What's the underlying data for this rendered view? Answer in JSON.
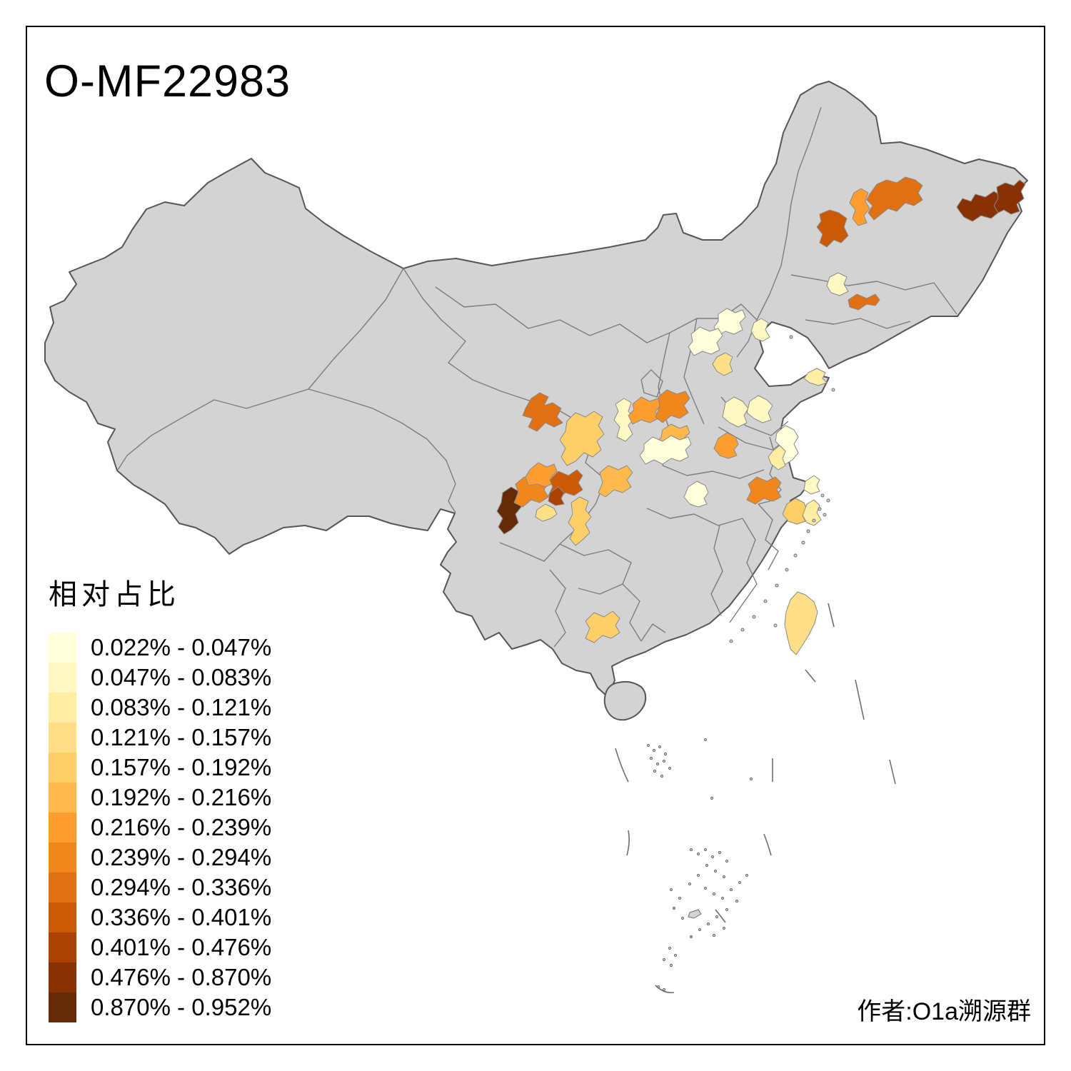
{
  "title": "O-MF22983",
  "attribution": "作者:O1a溯源群",
  "legend": {
    "title": "相对占比",
    "classes": [
      {
        "label": "0.022% - 0.047%",
        "color": "#FFFFDC"
      },
      {
        "label": "0.047% - 0.083%",
        "color": "#FFF8C2"
      },
      {
        "label": "0.083% - 0.121%",
        "color": "#FFEDA4"
      },
      {
        "label": "0.121% - 0.157%",
        "color": "#FEDF87"
      },
      {
        "label": "0.157% - 0.192%",
        "color": "#FECF66"
      },
      {
        "label": "0.192% - 0.216%",
        "color": "#FDB94B"
      },
      {
        "label": "0.216% - 0.239%",
        "color": "#FD9D30"
      },
      {
        "label": "0.239% - 0.294%",
        "color": "#F0861C"
      },
      {
        "label": "0.294% - 0.336%",
        "color": "#E07013"
      },
      {
        "label": "0.336% - 0.401%",
        "color": "#CC5906"
      },
      {
        "label": "0.401% - 0.476%",
        "color": "#AC4104"
      },
      {
        "label": "0.476% - 0.870%",
        "color": "#8A3104"
      },
      {
        "label": "0.870% - 0.952%",
        "color": "#652B06"
      }
    ]
  },
  "map": {
    "land_color": "#D3D3D3",
    "country_border_color": "#565656",
    "province_border_color": "#7D7D7D",
    "regions": [
      {
        "id": "r01",
        "class_index": 11,
        "range": "0.476% - 0.870%"
      },
      {
        "id": "r02",
        "class_index": 11,
        "range": "0.476% - 0.870%"
      },
      {
        "id": "r03",
        "class_index": 9,
        "range": "0.336% - 0.401%"
      },
      {
        "id": "r04",
        "class_index": 8,
        "range": "0.294% - 0.336%"
      },
      {
        "id": "r05",
        "class_index": 6,
        "range": "0.216% - 0.239%"
      },
      {
        "id": "r06",
        "class_index": 1,
        "range": "0.047% - 0.083%"
      },
      {
        "id": "r07",
        "class_index": 8,
        "range": "0.294% - 0.336%"
      },
      {
        "id": "r08",
        "class_index": 0,
        "range": "0.022% - 0.047%"
      },
      {
        "id": "r09",
        "class_index": 1,
        "range": "0.047% - 0.083%"
      },
      {
        "id": "r10",
        "class_index": 0,
        "range": "0.022% - 0.047%"
      },
      {
        "id": "r11",
        "class_index": 3,
        "range": "0.121% - 0.157%"
      },
      {
        "id": "r12",
        "class_index": 1,
        "range": "0.047% - 0.083%"
      },
      {
        "id": "r13",
        "class_index": 1,
        "range": "0.047% - 0.083%"
      },
      {
        "id": "r14",
        "class_index": 2,
        "range": "0.083% - 0.121%"
      },
      {
        "id": "r15",
        "class_index": 8,
        "range": "0.294% - 0.336%"
      },
      {
        "id": "r16",
        "class_index": 4,
        "range": "0.157% - 0.192%"
      },
      {
        "id": "r17",
        "class_index": 1,
        "range": "0.047% - 0.083%"
      },
      {
        "id": "r18",
        "class_index": 6,
        "range": "0.216% - 0.239%"
      },
      {
        "id": "r19",
        "class_index": 7,
        "range": "0.239% - 0.294%"
      },
      {
        "id": "r20",
        "class_index": 5,
        "range": "0.192% - 0.216%"
      },
      {
        "id": "r21",
        "class_index": 0,
        "range": "0.022% - 0.047%"
      },
      {
        "id": "r22",
        "class_index": 6,
        "range": "0.216% - 0.239%"
      },
      {
        "id": "r23",
        "class_index": 12,
        "range": "0.870% - 0.952%"
      },
      {
        "id": "r24",
        "class_index": 7,
        "range": "0.239% - 0.294%"
      },
      {
        "id": "r25",
        "class_index": 6,
        "range": "0.216% - 0.239%"
      },
      {
        "id": "r26",
        "class_index": 9,
        "range": "0.336% - 0.401%"
      },
      {
        "id": "r27",
        "class_index": 10,
        "range": "0.401% - 0.476%"
      },
      {
        "id": "r28",
        "class_index": 3,
        "range": "0.121% - 0.157%"
      },
      {
        "id": "r29",
        "class_index": 4,
        "range": "0.157% - 0.192%"
      },
      {
        "id": "r30",
        "class_index": 5,
        "range": "0.192% - 0.216%"
      },
      {
        "id": "r31",
        "class_index": 0,
        "range": "0.022% - 0.047%"
      },
      {
        "id": "r32",
        "class_index": 7,
        "range": "0.239% - 0.294%"
      },
      {
        "id": "r33",
        "class_index": 4,
        "range": "0.157% - 0.192%"
      },
      {
        "id": "r34",
        "class_index": 2,
        "range": "0.083% - 0.121%"
      },
      {
        "id": "r35",
        "class_index": 1,
        "range": "0.047% - 0.083%"
      },
      {
        "id": "r36",
        "class_index": 0,
        "range": "0.022% - 0.047%"
      },
      {
        "id": "r37",
        "class_index": 2,
        "range": "0.083% - 0.121%"
      },
      {
        "id": "r38",
        "class_index": 4,
        "range": "0.157% - 0.192%"
      },
      {
        "id": "r39",
        "class_index": 3,
        "range": "0.121% - 0.157%"
      }
    ]
  }
}
